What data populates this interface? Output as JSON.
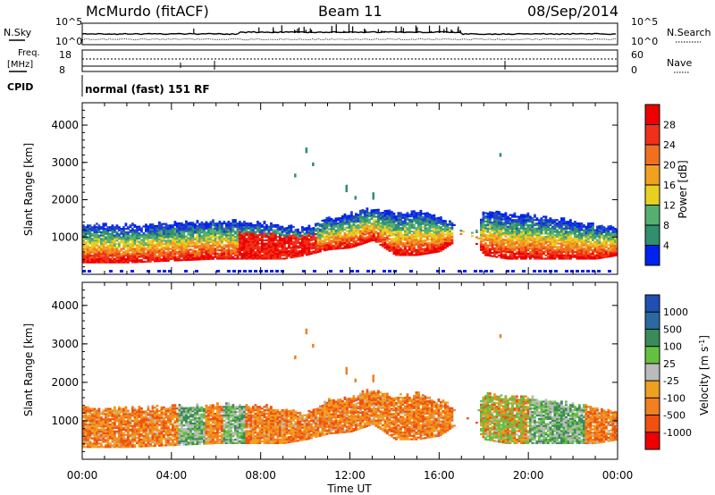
{
  "header": {
    "station": "McMurdo (fitACF)",
    "beam": "Beam 11",
    "date": "08/Sep/2014"
  },
  "summary_panel": {
    "left_labels": {
      "nsky": "N.Sky",
      "freq": "Freq.",
      "freq_unit": "[MHz]",
      "cpid": "CPID"
    },
    "right_labels": {
      "nsearch": "N.Search",
      "nave": "Nave"
    },
    "noise_ticks_left": [
      "10^5",
      "10^0"
    ],
    "noise_ticks_right": [
      "10^5",
      "10^0"
    ],
    "freq_ticks": [
      "18",
      "8"
    ],
    "nave_ticks": [
      "60",
      "0"
    ],
    "cpid_text": "normal (fast) 151 RF"
  },
  "colors": {
    "power_scale": [
      "#0022ee",
      "#2244cc",
      "#2f8f6f",
      "#55b070",
      "#e8d020",
      "#f2a020",
      "#f07020",
      "#f03018",
      "#ee0000"
    ],
    "velocity_scale": [
      "#1f4fb0",
      "#2a6aa0",
      "#3b8a5a",
      "#66c040",
      "#bbbbbb",
      "#f0a020",
      "#f08020",
      "#f05010",
      "#ee0000"
    ]
  },
  "chart_data": [
    {
      "type": "heatmap",
      "title": "",
      "ylabel": "Slant Range [km]",
      "xlabel": "",
      "ylim": [
        0,
        4600
      ],
      "yticks": [
        "1000",
        "2000",
        "3000",
        "4000"
      ],
      "xticks": [
        "00:00",
        "04:00",
        "08:00",
        "12:00",
        "16:00",
        "20:00",
        "00:00"
      ],
      "colorbar": {
        "label": "Power [dB]",
        "ticks": [
          "4",
          "8",
          "12",
          "16",
          "20",
          "24",
          "28"
        ],
        "range": [
          0,
          32
        ]
      },
      "echo_region_profile": {
        "x_hours": [
          0.0,
          2.0,
          4.0,
          6.0,
          7.0,
          8.0,
          9.0,
          10.0,
          11.0,
          12.0,
          13.0,
          14.0,
          15.0,
          16.0,
          17.0,
          17.5,
          18.0,
          19.0,
          20.0,
          21.0,
          22.0,
          23.0,
          24.0
        ],
        "lower_km": [
          300,
          300,
          350,
          400,
          400,
          400,
          400,
          500,
          650,
          700,
          900,
          500,
          500,
          600,
          1000,
          900,
          500,
          400,
          400,
          400,
          400,
          400,
          500
        ],
        "upper_km": [
          1300,
          1300,
          1350,
          1400,
          1400,
          1350,
          1300,
          1200,
          1500,
          1600,
          1800,
          1600,
          1700,
          1500,
          1200,
          1100,
          1700,
          1600,
          1600,
          1500,
          1400,
          1300,
          1200
        ]
      }
    },
    {
      "type": "heatmap",
      "title": "",
      "ylabel": "Slant Range [km]",
      "xlabel": "Time UT",
      "ylim": [
        0,
        4600
      ],
      "yticks": [
        "1000",
        "2000",
        "3000",
        "4000"
      ],
      "xticks": [
        "00:00",
        "04:00",
        "08:00",
        "12:00",
        "16:00",
        "20:00",
        "00:00"
      ],
      "colorbar": {
        "label": "Velocity [m s",
        "label_superscript": "-1",
        "label_close": "]",
        "ticks": [
          "1000",
          "500",
          "100",
          "25",
          "-25",
          "-100",
          "-500",
          "-1000"
        ],
        "range": [
          -1000,
          1000
        ]
      }
    }
  ]
}
